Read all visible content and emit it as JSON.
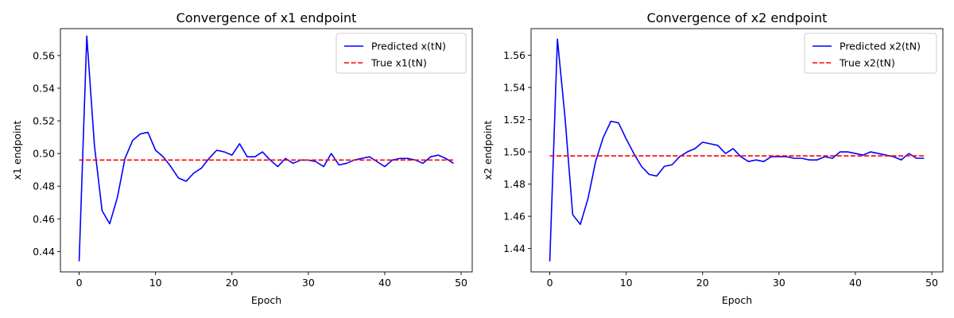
{
  "chart_data": [
    {
      "type": "line",
      "title": "Convergence of x1 endpoint",
      "xlabel": "Epoch",
      "ylabel": "x1 endpoint",
      "xlim": [
        -2.45,
        51.45
      ],
      "ylim": [
        0.4275,
        0.5765
      ],
      "xticks": [
        0,
        10,
        20,
        30,
        40,
        50
      ],
      "yticks": [
        0.44,
        0.46,
        0.48,
        0.5,
        0.52,
        0.54,
        0.56
      ],
      "ytick_labels": [
        "0.44",
        "0.46",
        "0.48",
        "0.50",
        "0.52",
        "0.54",
        "0.56"
      ],
      "legend_position": "top-right",
      "grid": false,
      "series": [
        {
          "name": "Predicted x(tN)",
          "color": "#0000ff",
          "style": "solid",
          "x": [
            0,
            1,
            2,
            3,
            4,
            5,
            6,
            7,
            8,
            9,
            10,
            11,
            12,
            13,
            14,
            15,
            16,
            17,
            18,
            19,
            20,
            21,
            22,
            23,
            24,
            25,
            26,
            27,
            28,
            29,
            30,
            31,
            32,
            33,
            34,
            35,
            36,
            37,
            38,
            39,
            40,
            41,
            42,
            43,
            44,
            45,
            46,
            47,
            48,
            49
          ],
          "y": [
            0.434,
            0.572,
            0.505,
            0.465,
            0.457,
            0.473,
            0.497,
            0.508,
            0.512,
            0.513,
            0.502,
            0.498,
            0.492,
            0.485,
            0.483,
            0.488,
            0.491,
            0.497,
            0.502,
            0.501,
            0.499,
            0.506,
            0.498,
            0.498,
            0.501,
            0.496,
            0.492,
            0.497,
            0.494,
            0.496,
            0.496,
            0.495,
            0.492,
            0.5,
            0.493,
            0.494,
            0.496,
            0.497,
            0.498,
            0.495,
            0.492,
            0.496,
            0.497,
            0.497,
            0.496,
            0.494,
            0.498,
            0.499,
            0.497,
            0.494
          ]
        },
        {
          "name": "True x1(tN)",
          "color": "#ff0000",
          "style": "dashed",
          "x": [
            0,
            49
          ],
          "y": [
            0.496,
            0.496
          ]
        }
      ]
    },
    {
      "type": "line",
      "title": "Convergence of x2 endpoint",
      "xlabel": "Epoch",
      "ylabel": "x2 endpoint",
      "xlim": [
        -2.45,
        51.45
      ],
      "ylim": [
        1.4255,
        1.5765
      ],
      "xticks": [
        0,
        10,
        20,
        30,
        40,
        50
      ],
      "yticks": [
        1.44,
        1.46,
        1.48,
        1.5,
        1.52,
        1.54,
        1.56
      ],
      "ytick_labels": [
        "1.44",
        "1.46",
        "1.48",
        "1.50",
        "1.52",
        "1.54",
        "1.56"
      ],
      "legend_position": "top-right",
      "grid": false,
      "series": [
        {
          "name": "Predicted x2(tN)",
          "color": "#0000ff",
          "style": "solid",
          "x": [
            0,
            1,
            2,
            3,
            4,
            5,
            6,
            7,
            8,
            9,
            10,
            11,
            12,
            13,
            14,
            15,
            16,
            17,
            18,
            19,
            20,
            21,
            22,
            23,
            24,
            25,
            26,
            27,
            28,
            29,
            30,
            31,
            32,
            33,
            34,
            35,
            36,
            37,
            38,
            39,
            40,
            41,
            42,
            43,
            44,
            45,
            46,
            47,
            48,
            49
          ],
          "y": [
            1.432,
            1.57,
            1.521,
            1.461,
            1.455,
            1.471,
            1.494,
            1.509,
            1.519,
            1.518,
            1.508,
            1.499,
            1.491,
            1.486,
            1.485,
            1.491,
            1.492,
            1.497,
            1.5,
            1.502,
            1.506,
            1.505,
            1.504,
            1.499,
            1.502,
            1.497,
            1.494,
            1.495,
            1.494,
            1.497,
            1.497,
            1.497,
            1.496,
            1.496,
            1.495,
            1.495,
            1.497,
            1.496,
            1.5,
            1.5,
            1.499,
            1.498,
            1.5,
            1.499,
            1.498,
            1.497,
            1.495,
            1.499,
            1.496,
            1.496
          ]
        },
        {
          "name": "True x2(tN)",
          "color": "#ff0000",
          "style": "dashed",
          "x": [
            0,
            49
          ],
          "y": [
            1.4975,
            1.4975
          ]
        }
      ]
    }
  ]
}
